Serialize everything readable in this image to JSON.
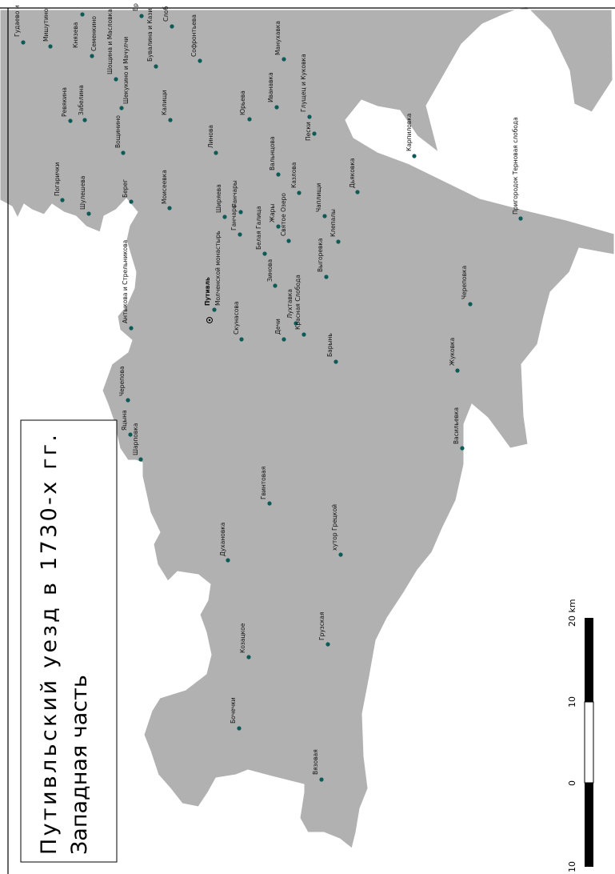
{
  "title": {
    "line1": "Путивльский уезд в 1730-х гг.",
    "line2": "Западная часть"
  },
  "scale_bar": {
    "labels": [
      "10",
      "0",
      "10",
      "20 km"
    ],
    "units": "km"
  },
  "colors": {
    "land": "#b0b1b0",
    "settlement_marker": "#0e5a57",
    "background": "#ffffff"
  },
  "settlements": [
    {
      "name": "Путивль",
      "capital": true
    },
    {
      "name": "Молченской монастырь"
    },
    {
      "name": "Гудаево и"
    },
    {
      "name": "Мишутино"
    },
    {
      "name": "Князева"
    },
    {
      "name": "Семенкино"
    },
    {
      "name": "Шощина и Масловка"
    },
    {
      "name": "Шекукино и Мачулчи"
    },
    {
      "name": "Бувалина и Кази"
    },
    {
      "name": "Бр"
    },
    {
      "name": "Слоб"
    },
    {
      "name": "Софронтьева"
    },
    {
      "name": "Манухавка"
    },
    {
      "name": "Ревякина"
    },
    {
      "name": "Забелина"
    },
    {
      "name": "Калищи"
    },
    {
      "name": "Юрьева"
    },
    {
      "name": "Иванавка"
    },
    {
      "name": "Глущец и Куковка"
    },
    {
      "name": "Вощинино"
    },
    {
      "name": "Линова"
    },
    {
      "name": "Пески"
    },
    {
      "name": "Карпиловка"
    },
    {
      "name": "Погарички"
    },
    {
      "name": "Шулешева"
    },
    {
      "name": "Берег"
    },
    {
      "name": "Моисеевка"
    },
    {
      "name": "Ширяева"
    },
    {
      "name": "Ганчары"
    },
    {
      "name": "Вальнцова"
    },
    {
      "name": "Казлова"
    },
    {
      "name": "Дьяковка"
    },
    {
      "name": "Чаплищи"
    },
    {
      "name": "Клепалы"
    },
    {
      "name": "Пригородок Терновая слобода"
    },
    {
      "name": "Антыкова и Стрельникова"
    },
    {
      "name": "Ганчары"
    },
    {
      "name": "Белая Галица"
    },
    {
      "name": "Жары"
    },
    {
      "name": "Святое Озеро"
    },
    {
      "name": "Зинова"
    },
    {
      "name": "Выгоревка"
    },
    {
      "name": "Череповка"
    },
    {
      "name": "Скунасова"
    },
    {
      "name": "Дечи"
    },
    {
      "name": "Лухтавка"
    },
    {
      "name": "Красная Слобода"
    },
    {
      "name": "Барынь"
    },
    {
      "name": "Черепова"
    },
    {
      "name": "Жуковка"
    },
    {
      "name": "Яцына"
    },
    {
      "name": "Шарповка"
    },
    {
      "name": "Васильевка"
    },
    {
      "name": "Гвинтовая"
    },
    {
      "name": "Духановка"
    },
    {
      "name": "хутор Грецкой"
    },
    {
      "name": "Козацкое"
    },
    {
      "name": "Грузская"
    },
    {
      "name": "Бочечки"
    },
    {
      "name": "Вязовая"
    }
  ]
}
